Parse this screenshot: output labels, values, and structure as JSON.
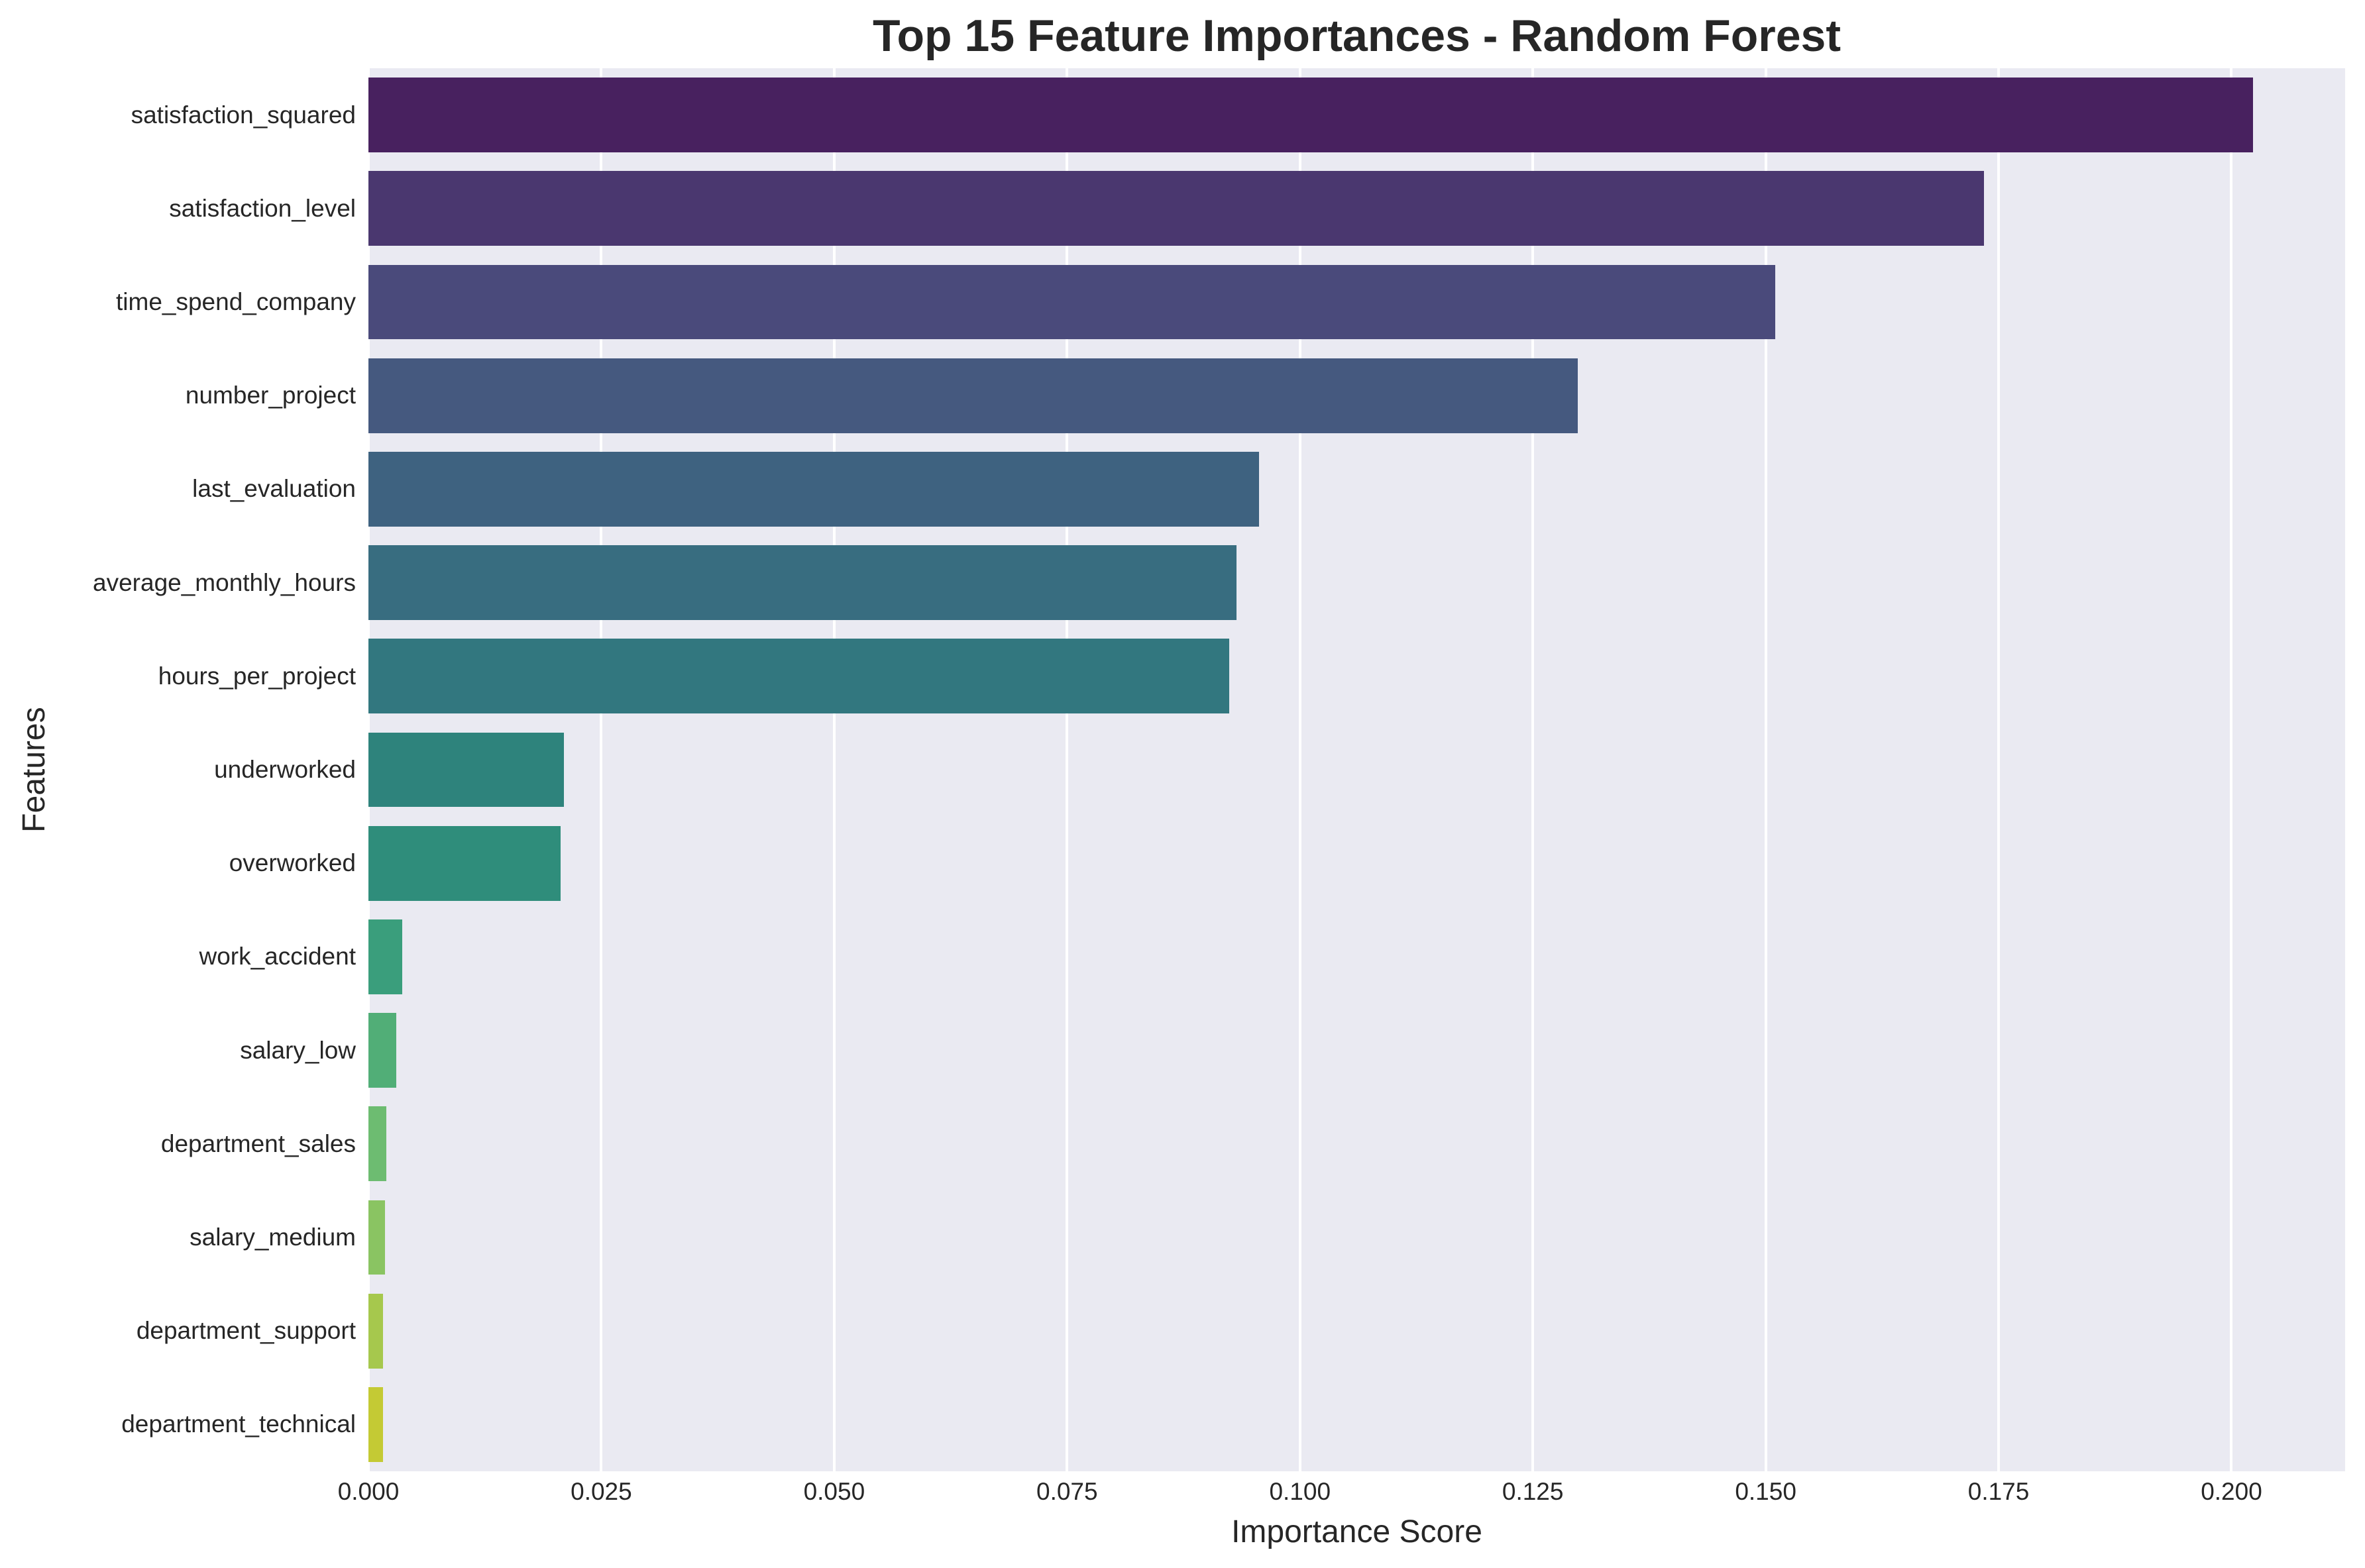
{
  "chart_data": {
    "type": "bar",
    "orientation": "horizontal",
    "title": "Top 15 Feature Importances - Random Forest",
    "xlabel": "Importance Score",
    "ylabel": "Features",
    "xlim": [
      0,
      0.2122
    ],
    "xticks": [
      0.0,
      0.025,
      0.05,
      0.075,
      0.1,
      0.125,
      0.15,
      0.175,
      0.2
    ],
    "xtick_labels": [
      "0.000",
      "0.025",
      "0.050",
      "0.075",
      "0.100",
      "0.125",
      "0.150",
      "0.175",
      "0.200"
    ],
    "grid": {
      "x": true,
      "y": false,
      "background": "#eaeaf2",
      "gridline_color": "#ffffff"
    },
    "legend": null,
    "categories": [
      "satisfaction_squared",
      "satisfaction_level",
      "time_spend_company",
      "number_project",
      "last_evaluation",
      "average_monthly_hours",
      "hours_per_project",
      "underworked",
      "overworked",
      "work_accident",
      "salary_low",
      "department_sales",
      "salary_medium",
      "department_support",
      "department_technical"
    ],
    "values": [
      0.2023,
      0.1734,
      0.151,
      0.1298,
      0.0956,
      0.0932,
      0.0924,
      0.021,
      0.0206,
      0.0036,
      0.003,
      0.0019,
      0.0018,
      0.0016,
      0.0016
    ],
    "colors": [
      "#48215f",
      "#4a376f",
      "#4a4a7b",
      "#45597f",
      "#3e6280",
      "#386d80",
      "#32777f",
      "#2e837c",
      "#2f8d7b",
      "#3a9e7c",
      "#51ae77",
      "#6dbc71",
      "#8ac462",
      "#a6c84d",
      "#c4ca34"
    ],
    "palette": "viridis"
  }
}
